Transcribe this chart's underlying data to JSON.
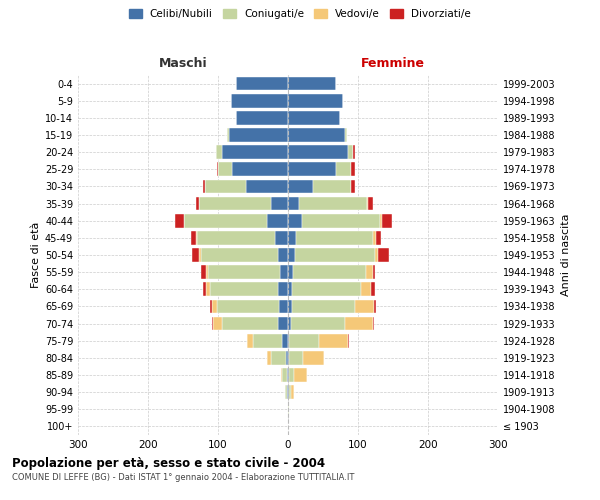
{
  "age_groups": [
    "100+",
    "95-99",
    "90-94",
    "85-89",
    "80-84",
    "75-79",
    "70-74",
    "65-69",
    "60-64",
    "55-59",
    "50-54",
    "45-49",
    "40-44",
    "35-39",
    "30-34",
    "25-29",
    "20-24",
    "15-19",
    "10-14",
    "5-9",
    "0-4"
  ],
  "birth_years": [
    "≤ 1903",
    "1904-1908",
    "1909-1913",
    "1914-1918",
    "1919-1923",
    "1924-1928",
    "1929-1933",
    "1934-1938",
    "1939-1943",
    "1944-1948",
    "1949-1953",
    "1954-1958",
    "1959-1963",
    "1964-1968",
    "1969-1973",
    "1974-1978",
    "1979-1983",
    "1984-1988",
    "1989-1993",
    "1994-1998",
    "1999-2003"
  ],
  "males": {
    "celibe": [
      0,
      0,
      1,
      2,
      3,
      8,
      15,
      13,
      14,
      12,
      15,
      18,
      30,
      25,
      60,
      80,
      95,
      85,
      75,
      82,
      75
    ],
    "coniugato": [
      0,
      0,
      3,
      6,
      22,
      42,
      80,
      88,
      98,
      102,
      110,
      112,
      118,
      102,
      58,
      20,
      8,
      2,
      0,
      0,
      0
    ],
    "vedovo": [
      0,
      0,
      0,
      2,
      5,
      8,
      12,
      8,
      5,
      3,
      2,
      1,
      1,
      0,
      0,
      0,
      0,
      0,
      0,
      0,
      0
    ],
    "divorziato": [
      0,
      0,
      0,
      0,
      0,
      1,
      2,
      3,
      5,
      8,
      10,
      8,
      12,
      5,
      3,
      2,
      0,
      0,
      0,
      0,
      0
    ]
  },
  "females": {
    "nubile": [
      0,
      0,
      1,
      1,
      2,
      2,
      4,
      5,
      6,
      7,
      10,
      12,
      20,
      16,
      36,
      68,
      85,
      82,
      74,
      78,
      68
    ],
    "coniugata": [
      0,
      1,
      3,
      8,
      20,
      42,
      78,
      90,
      98,
      104,
      114,
      110,
      112,
      97,
      54,
      22,
      8,
      2,
      0,
      0,
      0
    ],
    "vedova": [
      0,
      1,
      5,
      18,
      30,
      42,
      40,
      28,
      15,
      10,
      5,
      3,
      2,
      1,
      0,
      0,
      0,
      0,
      0,
      0,
      0
    ],
    "divorziata": [
      0,
      0,
      0,
      0,
      0,
      1,
      1,
      2,
      5,
      3,
      15,
      8,
      15,
      8,
      5,
      5,
      2,
      0,
      0,
      0,
      0
    ]
  },
  "colors": {
    "celibe": "#4472a8",
    "coniugato": "#c5d5a0",
    "vedovo": "#f5c878",
    "divorziato": "#cc2222"
  },
  "xlim": 300,
  "title": "Popolazione per età, sesso e stato civile - 2004",
  "subtitle": "COMUNE DI LEFFE (BG) - Dati ISTAT 1° gennaio 2004 - Elaborazione TUTTITALIA.IT",
  "ylabel": "Fasce di età",
  "ylabel_right": "Anni di nascita",
  "xlabel_left": "Maschi",
  "xlabel_right": "Femmine",
  "legend_labels": [
    "Celibi/Nubili",
    "Coniugati/e",
    "Vedovi/e",
    "Divorziati/e"
  ],
  "background_color": "#ffffff",
  "grid_color": "#cccccc"
}
